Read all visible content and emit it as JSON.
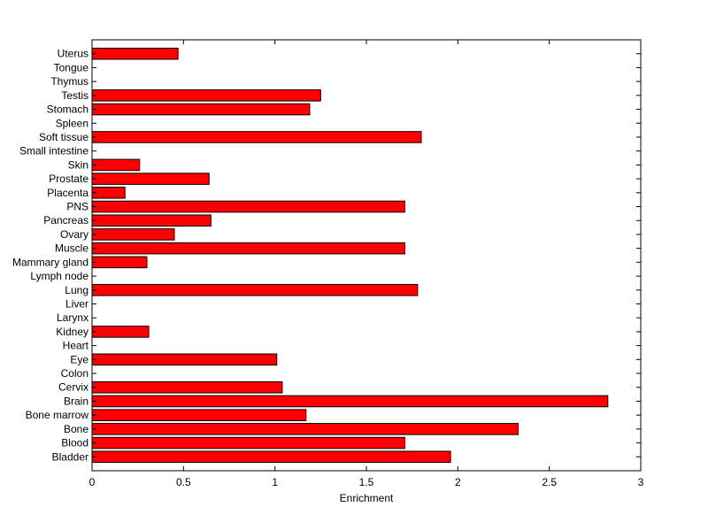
{
  "chart_data": {
    "type": "bar",
    "orientation": "horizontal",
    "title": "",
    "xlabel": "Enrichment",
    "ylabel": "",
    "xlim": [
      0,
      3
    ],
    "xticks": [
      "0",
      "0.5",
      "1",
      "1.5",
      "2",
      "2.5",
      "3"
    ],
    "grid": false,
    "legend": "none",
    "bar_color": "#ff0000",
    "categories": [
      "Bladder",
      "Blood",
      "Bone",
      "Bone marrow",
      "Brain",
      "Cervix",
      "Colon",
      "Eye",
      "Heart",
      "Kidney",
      "Larynx",
      "Liver",
      "Lung",
      "Lymph node",
      "Mammary gland",
      "Muscle",
      "Ovary",
      "Pancreas",
      "PNS",
      "Placenta",
      "Prostate",
      "Skin",
      "Small intestine",
      "Soft tissue",
      "Spleen",
      "Stomach",
      "Testis",
      "Thymus",
      "Tongue",
      "Uterus"
    ],
    "values": [
      1.96,
      1.71,
      2.33,
      1.17,
      2.82,
      1.04,
      0,
      1.01,
      0,
      0.31,
      0,
      0,
      1.78,
      0,
      0.3,
      1.71,
      0.45,
      0.65,
      1.71,
      0.18,
      0.64,
      0.26,
      0,
      1.8,
      0,
      1.19,
      1.25,
      0,
      0,
      0.47
    ]
  }
}
